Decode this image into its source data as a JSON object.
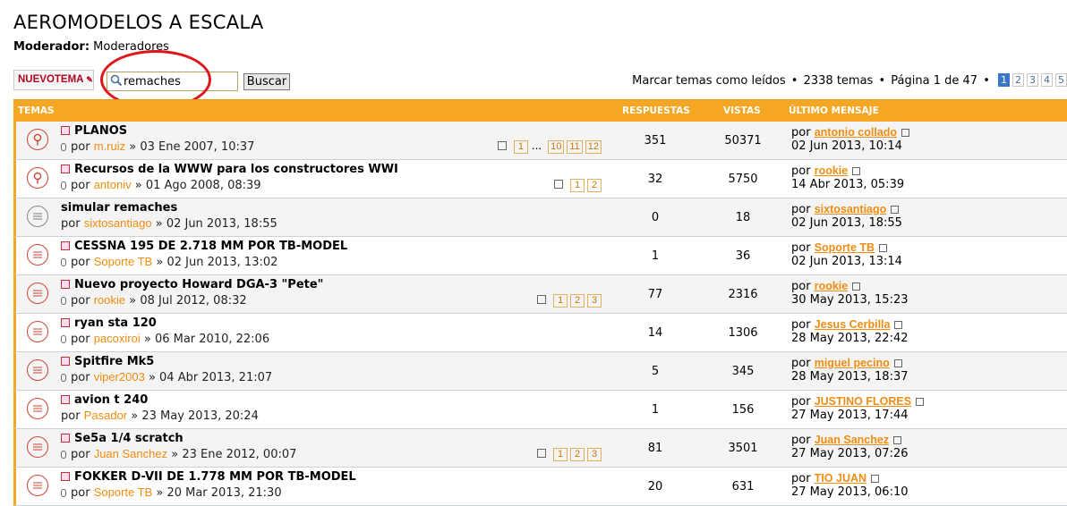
{
  "forum": {
    "title": "AEROMODELOS A ESCALA",
    "moderator_label": "Moderador:",
    "moderator_value": "Moderadores"
  },
  "toolbar": {
    "new_topic_label": "NUEVOTEMA",
    "search_value": "remaches",
    "search_button": "Buscar",
    "mark_read": "Marcar temas como leídos",
    "topic_count": "2338 temas",
    "page_info": "Página 1 de 47",
    "pages": [
      "1",
      "2",
      "3",
      "4",
      "5"
    ]
  },
  "table": {
    "col_topics": "TEMAS",
    "col_replies": "RESPUESTAS",
    "col_views": "VISTAS",
    "col_last": "ÚLTIMO MENSAJE"
  },
  "colors": {
    "accent": "#f5a623",
    "author": "#f08c10",
    "annotation": "#e0141a"
  },
  "by": "por",
  "topics": [
    {
      "title": "PLANOS",
      "author": "m.ruiz",
      "date": "03 Ene 2007, 10:37",
      "pages": [
        "1",
        "...",
        "10",
        "11",
        "12"
      ],
      "replies": "351",
      "views": "50371",
      "last_author": "antonio collado",
      "last_date": "02 Jun 2013, 10:14",
      "icon": "sticky"
    },
    {
      "title": "Recursos de la WWW para los constructores WWI",
      "author": "antoniv",
      "date": "01 Ago 2008, 08:39",
      "pages": [
        "1",
        "2"
      ],
      "replies": "32",
      "views": "5750",
      "last_author": "rookie",
      "last_date": "14 Abr 2013, 05:39",
      "icon": "sticky"
    },
    {
      "title": "simular remaches",
      "author": "sixtosantiago",
      "date": "02 Jun 2013, 18:55",
      "pages": [],
      "replies": "0",
      "views": "18",
      "last_author": "sixtosantiago",
      "last_date": "02 Jun 2013, 18:55",
      "icon": "read"
    },
    {
      "title": "CESSNA 195 DE 2.718 MM POR TB-MODEL",
      "author": "Soporte TB",
      "date": "02 Jun 2013, 13:02",
      "pages": [],
      "replies": "1",
      "views": "36",
      "last_author": "Soporte TB",
      "last_date": "02 Jun 2013, 13:14",
      "icon": "unread"
    },
    {
      "title": "Nuevo proyecto Howard DGA-3 \"Pete\"",
      "author": "rookie",
      "date": "08 Jul 2012, 08:32",
      "pages": [
        "1",
        "2",
        "3"
      ],
      "replies": "77",
      "views": "2316",
      "last_author": "rookie",
      "last_date": "30 May 2013, 15:23",
      "icon": "unread"
    },
    {
      "title": "ryan sta 120",
      "author": "pacoxiroi",
      "date": "06 Mar 2010, 22:06",
      "pages": [],
      "replies": "14",
      "views": "1306",
      "last_author": "Jesus Cerbilla",
      "last_date": "28 May 2013, 22:42",
      "icon": "unread"
    },
    {
      "title": "Spitfire Mk5",
      "author": "viper2003",
      "date": "04 Abr 2013, 21:07",
      "pages": [],
      "replies": "5",
      "views": "345",
      "last_author": "miguel pecino",
      "last_date": "28 May 2013, 18:37",
      "icon": "unread"
    },
    {
      "title": "avion t 240",
      "author": "Pasador",
      "date": "23 May 2013, 20:24",
      "pages": [],
      "replies": "1",
      "views": "156",
      "last_author": "JUSTINO FLORES",
      "last_date": "27 May 2013, 17:44",
      "icon": "unread"
    },
    {
      "title": "Se5a 1/4 scratch",
      "author": "Juan Sanchez",
      "date": "23 Ene 2012, 00:07",
      "pages": [
        "1",
        "2",
        "3"
      ],
      "replies": "81",
      "views": "3501",
      "last_author": "Juan Sanchez",
      "last_date": "27 May 2013, 07:26",
      "icon": "unread"
    },
    {
      "title": "FOKKER D-VII DE 1.778 MM POR TB-MODEL",
      "author": "Soporte TB",
      "date": "20 Mar 2013, 21:30",
      "pages": [],
      "replies": "20",
      "views": "631",
      "last_author": "TIO JUAN",
      "last_date": "27 May 2013, 06:10",
      "icon": "unread"
    }
  ]
}
